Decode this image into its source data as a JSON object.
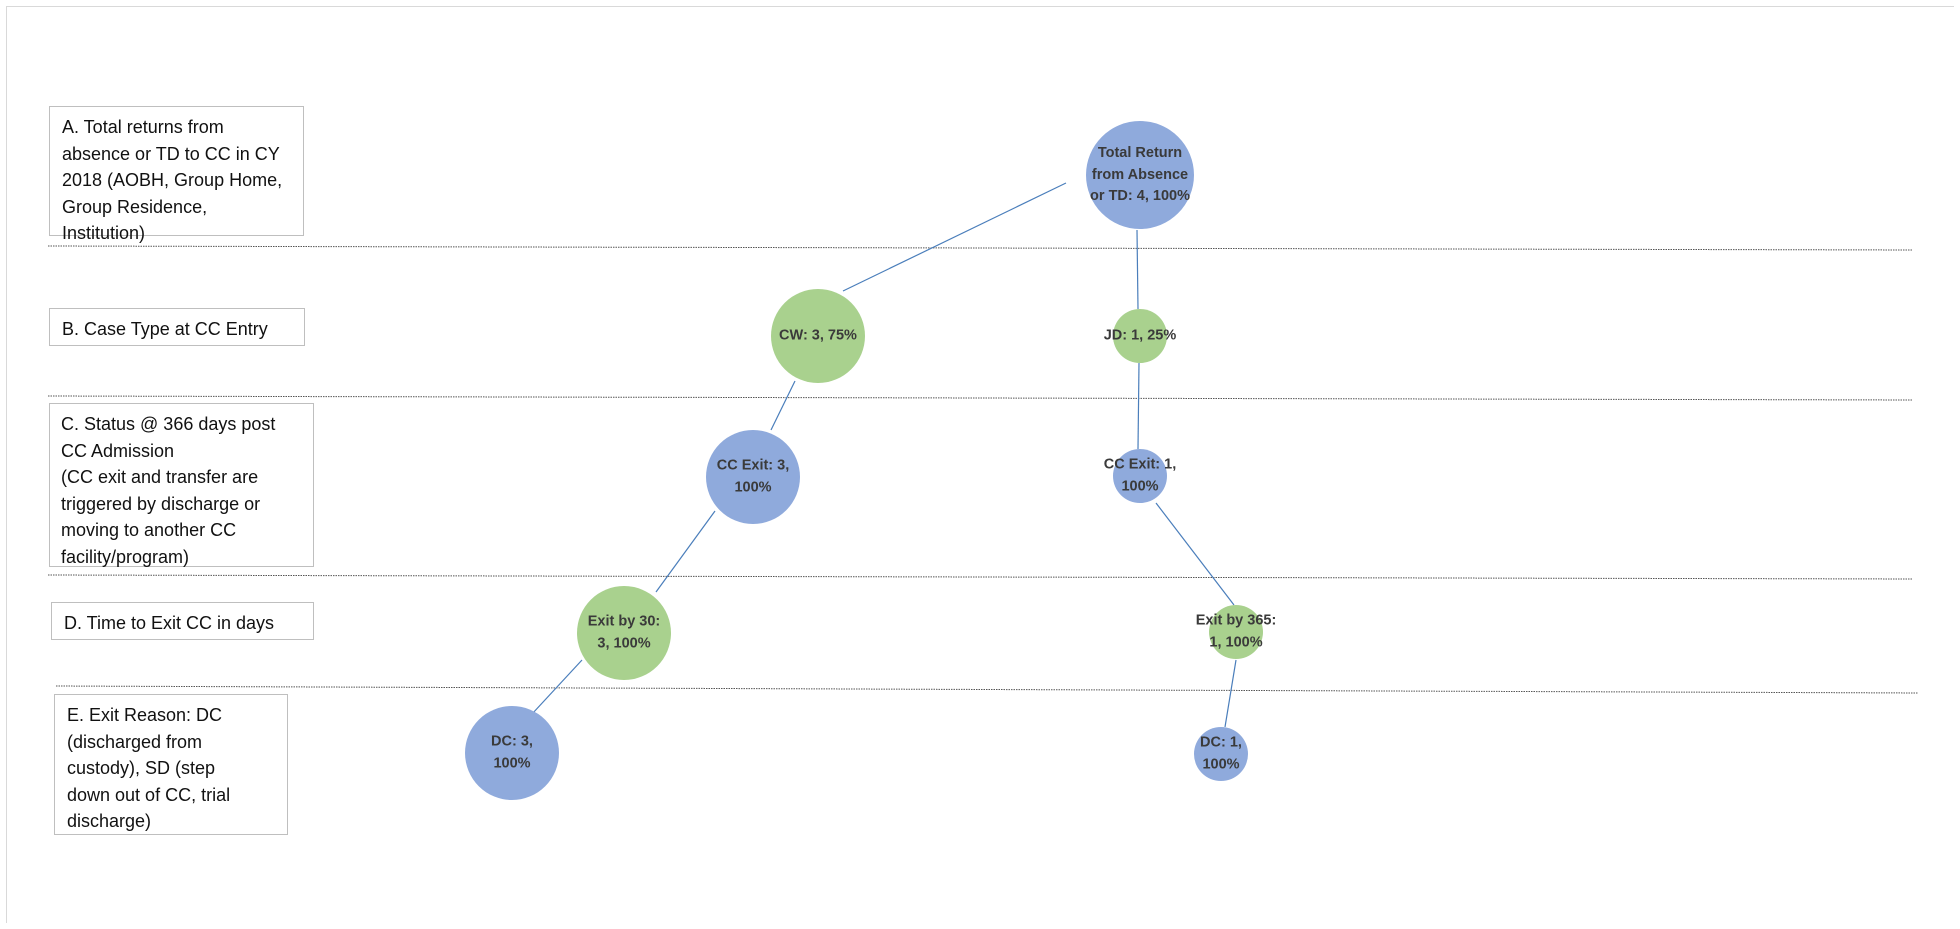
{
  "colors": {
    "blue_node": "#8faadc",
    "green_node": "#a9d18e",
    "connector": "#4a7ebb",
    "divider": "#555555"
  },
  "levels": [
    {
      "id": "A",
      "label": "A. Total returns from absence or TD to CC in CY 2018 (AOBH, Group Home, Group Residence, Institution)"
    },
    {
      "id": "B",
      "label": "B. Case Type at CC Entry"
    },
    {
      "id": "C",
      "label": "C. Status @ 366 days post CC Admission\n(CC exit and transfer are triggered by discharge or moving to another CC facility/program)"
    },
    {
      "id": "D",
      "label": "D. Time to Exit CC in days"
    },
    {
      "id": "E",
      "label": "E. Exit Reason: DC (discharged from custody), SD (step down out of CC, trial discharge)"
    }
  ],
  "nodes": [
    {
      "id": "root",
      "level": "A",
      "color": "blue",
      "label": "Total Return\nfrom Absence\nor TD: 4, 100%"
    },
    {
      "id": "cw",
      "level": "B",
      "color": "green",
      "label": "CW: 3,  75%"
    },
    {
      "id": "jd",
      "level": "B",
      "color": "green",
      "label": "JD: 1, 25%"
    },
    {
      "id": "cw_exit",
      "level": "C",
      "color": "blue",
      "label": "CC Exit: 3,\n100%"
    },
    {
      "id": "jd_exit",
      "level": "C",
      "color": "blue",
      "label": "CC Exit: 1,\n100%"
    },
    {
      "id": "cw_time",
      "level": "D",
      "color": "green",
      "label": "Exit by 30:\n3, 100%"
    },
    {
      "id": "jd_time",
      "level": "D",
      "color": "green",
      "label": "Exit by 365:\n1, 100%"
    },
    {
      "id": "cw_dc",
      "level": "E",
      "color": "blue",
      "label": "DC: 3,\n100%"
    },
    {
      "id": "jd_dc",
      "level": "E",
      "color": "blue",
      "label": "DC: 1,\n100%"
    }
  ],
  "edges": [
    {
      "from": "root",
      "to": "cw"
    },
    {
      "from": "root",
      "to": "jd"
    },
    {
      "from": "cw",
      "to": "cw_exit"
    },
    {
      "from": "jd",
      "to": "jd_exit"
    },
    {
      "from": "cw_exit",
      "to": "cw_time"
    },
    {
      "from": "jd_exit",
      "to": "jd_time"
    },
    {
      "from": "cw_time",
      "to": "cw_dc"
    },
    {
      "from": "jd_time",
      "to": "jd_dc"
    }
  ]
}
